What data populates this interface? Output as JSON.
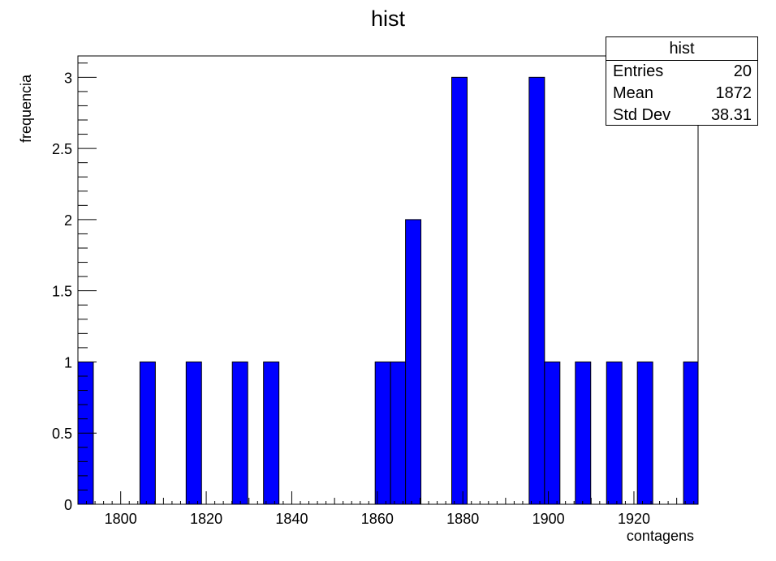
{
  "chart_data": {
    "type": "bar",
    "title": "hist",
    "xlabel": "contagens",
    "ylabel": "frequencia",
    "xlim": [
      1790,
      1935
    ],
    "ylim": [
      0,
      3.15
    ],
    "x_ticks": [
      1800,
      1820,
      1840,
      1860,
      1880,
      1900,
      1920
    ],
    "y_ticks": [
      0,
      0.5,
      1,
      1.5,
      2,
      2.5,
      3
    ],
    "y_tick_labels": [
      "0",
      "0.5",
      "1",
      "1.5",
      "2",
      "2.5",
      "3"
    ],
    "bin_width": 3.6,
    "bins": [
      {
        "x0": 1790.0,
        "value": 1
      },
      {
        "x0": 1804.5,
        "value": 1
      },
      {
        "x0": 1815.3,
        "value": 1
      },
      {
        "x0": 1826.1,
        "value": 1
      },
      {
        "x0": 1833.4,
        "value": 1
      },
      {
        "x0": 1859.5,
        "value": 1
      },
      {
        "x0": 1863.1,
        "value": 1
      },
      {
        "x0": 1866.6,
        "value": 2
      },
      {
        "x0": 1877.4,
        "value": 3
      },
      {
        "x0": 1895.5,
        "value": 3
      },
      {
        "x0": 1899.1,
        "value": 1
      },
      {
        "x0": 1906.3,
        "value": 1
      },
      {
        "x0": 1913.6,
        "value": 1
      },
      {
        "x0": 1920.8,
        "value": 1
      },
      {
        "x0": 1931.6,
        "value": 1
      }
    ],
    "bar_color": "#0000ff",
    "grid": false,
    "legend": "none"
  },
  "stats": {
    "title": "hist",
    "rows": [
      {
        "label": "Entries",
        "value": "20"
      },
      {
        "label": "Mean",
        "value": "1872"
      },
      {
        "label": "Std Dev",
        "value": "38.31"
      }
    ]
  }
}
